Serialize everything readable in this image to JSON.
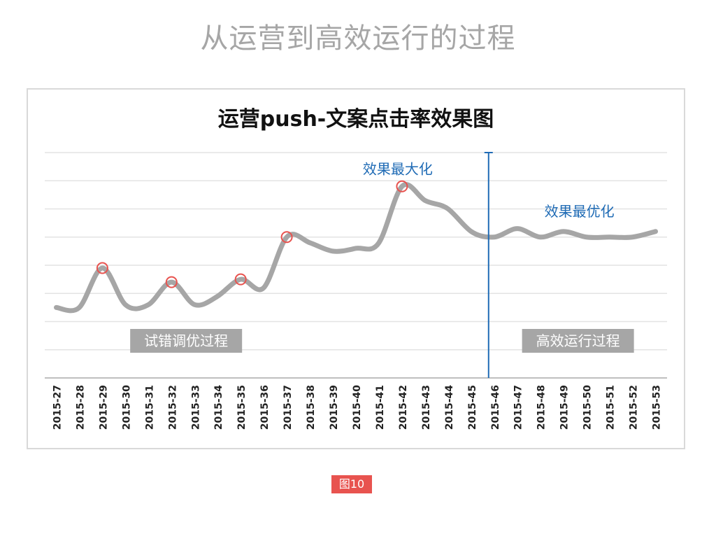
{
  "page_title": "从运营到高效运行的过程",
  "figure_caption": "图10",
  "chart_data": {
    "type": "line",
    "title": "运营push-文案点击率效果图",
    "xlabel": "",
    "ylabel": "",
    "grid": true,
    "legend": "none",
    "y_axis_labels_shown": false,
    "line_color": "#a6a6a6",
    "marker_color": "#e8534f",
    "annotation_color": "#1f6bb5",
    "region_label_bg": "#a6a6a6",
    "categories": [
      "2015-27",
      "2015-28",
      "2015-29",
      "2015-30",
      "2015-31",
      "2015-32",
      "2015-33",
      "2015-34",
      "2015-35",
      "2015-36",
      "2015-37",
      "2015-38",
      "2015-39",
      "2015-40",
      "2015-41",
      "2015-42",
      "2015-43",
      "2015-44",
      "2015-45",
      "2015-46",
      "2015-47",
      "2015-48",
      "2015-49",
      "2015-50",
      "2015-51",
      "2015-52",
      "2015-53"
    ],
    "series": [
      {
        "name": "",
        "values": [
          2.5,
          2.5,
          3.9,
          2.6,
          2.6,
          3.4,
          2.6,
          2.9,
          3.5,
          3.2,
          5.0,
          4.8,
          4.5,
          4.6,
          4.8,
          6.8,
          6.3,
          6.0,
          5.2,
          5.0,
          5.3,
          5.0,
          5.2,
          5.0,
          5.0,
          5.0,
          5.2
        ]
      }
    ],
    "ylim": [
      0,
      8
    ],
    "markers": [
      "2015-29",
      "2015-32",
      "2015-35",
      "2015-37",
      "2015-42"
    ],
    "divider_at": "2015-46",
    "annotations": [
      {
        "text": "效果最大化",
        "at": "2015-42"
      },
      {
        "text": "效果最优化",
        "at": "2015-50"
      }
    ],
    "region_labels": [
      {
        "text": "试错调优过程",
        "at": "2015-35"
      },
      {
        "text": "高效运行过程",
        "at": "2015-50"
      }
    ]
  }
}
